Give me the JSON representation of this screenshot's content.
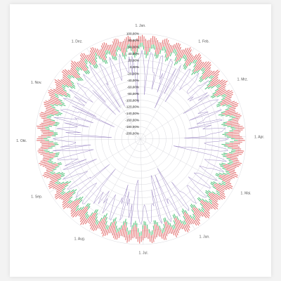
{
  "header": {
    "title": ""
  },
  "chart_data": {
    "type": "polar-area",
    "title": "",
    "radial_axis": {
      "min": -200,
      "max": 100,
      "step": 20,
      "unit": "%",
      "tick_labels": [
        "100,00%",
        "80,00%",
        "60,00%",
        "40,00%",
        "20,00%",
        "0,00%",
        "-20,00%",
        "-40,00%",
        "-60,00%",
        "-80,00%",
        "-100,00%",
        "-120,00%",
        "-140,00%",
        "-160,00%",
        "-180,00%",
        "-200,00%"
      ]
    },
    "angular_axis": {
      "labels": [
        "1. Jan.",
        "1. Feb.",
        "1. Mrz.",
        "1. Apr.",
        "1. Mai.",
        "1. Jun.",
        "1. Jul.",
        "1. Aug.",
        "1. Sep.",
        "1. Okt.",
        "1. Nov.",
        "1. Dez."
      ],
      "start_day_of_year": [
        1,
        32,
        60,
        91,
        121,
        152,
        182,
        213,
        244,
        274,
        305,
        335
      ],
      "days_in_year": 365
    },
    "grid": true,
    "colors": {
      "upper_band": "#e05a5a",
      "lower_band": "#3dbb6a",
      "line": "#9b86c4",
      "grid": "#cfcfd6"
    },
    "series_profile": {
      "note_free": true,
      "red_upper_range": [
        70,
        98
      ],
      "green_range": [
        35,
        80
      ],
      "purple_range": [
        -130,
        55
      ]
    }
  }
}
